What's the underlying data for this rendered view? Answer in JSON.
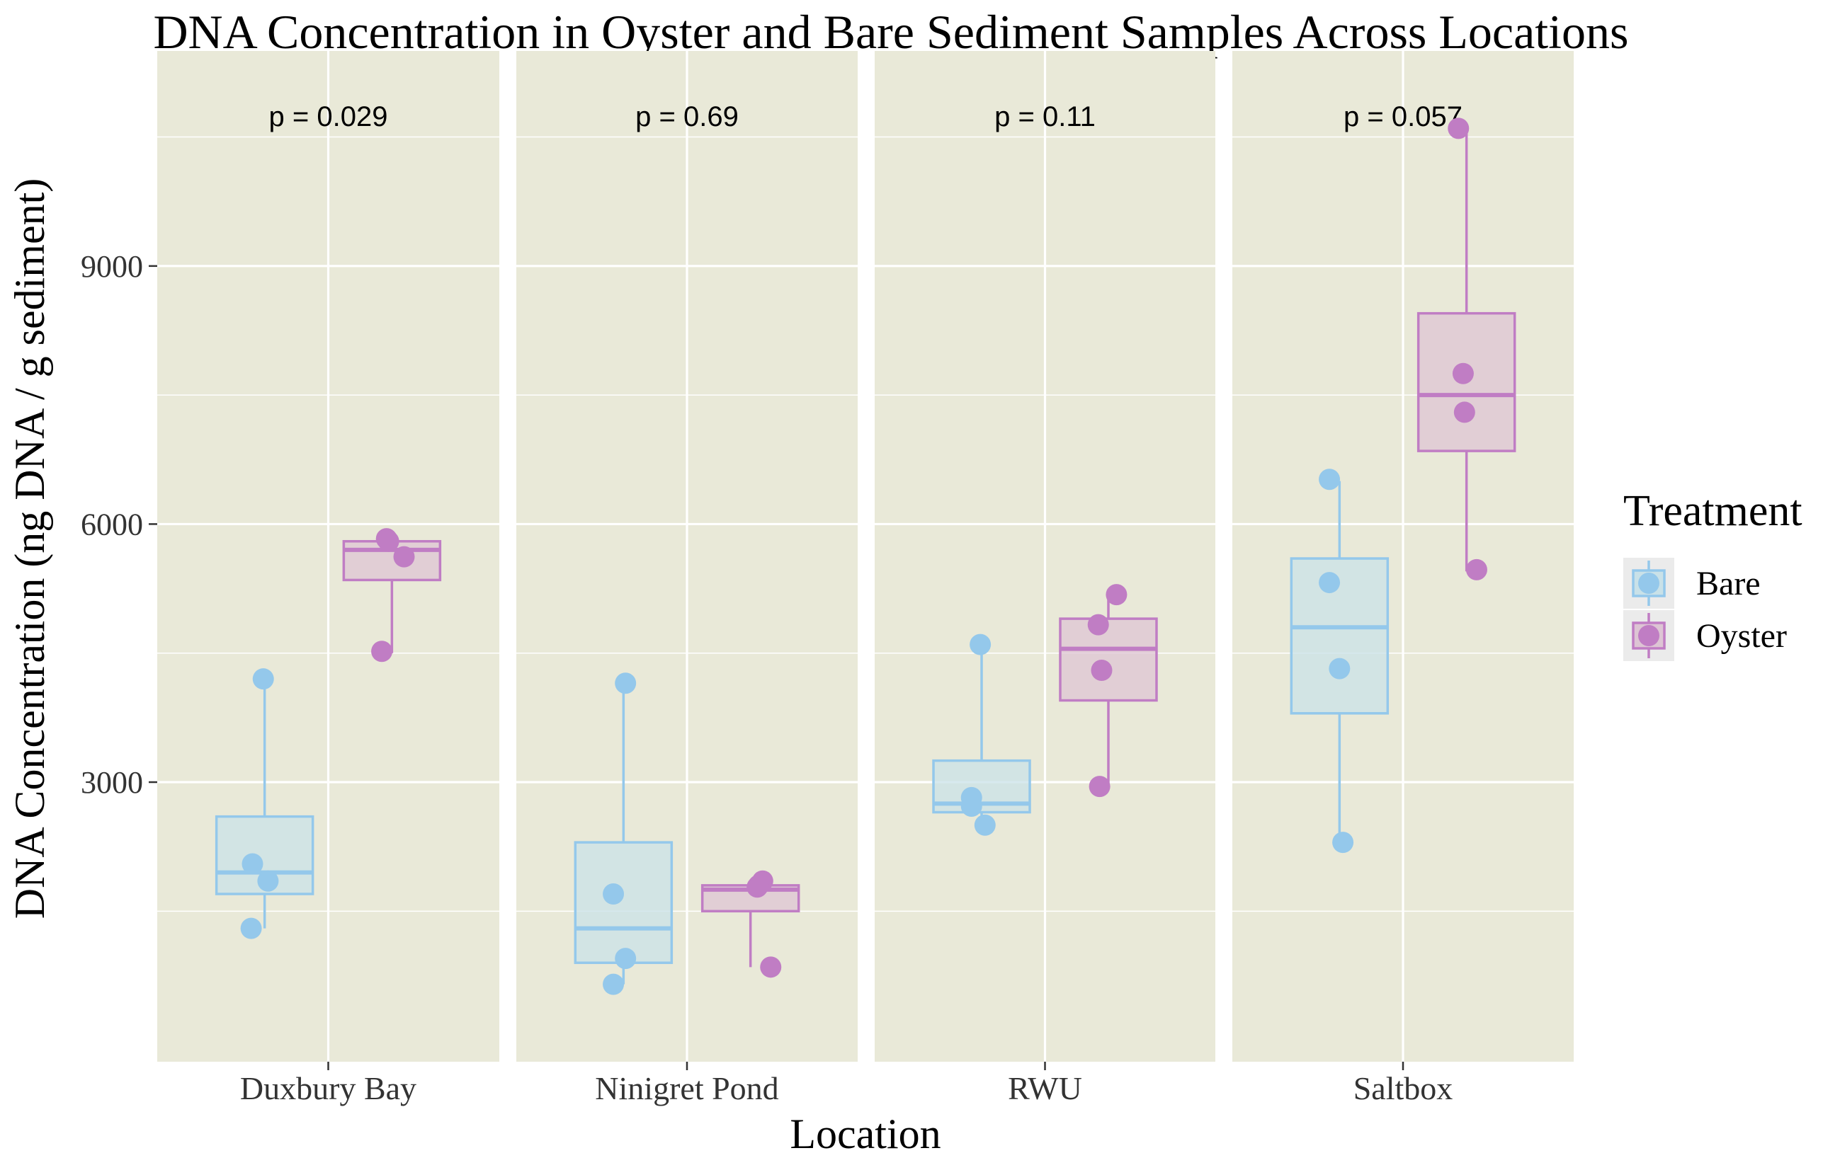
{
  "chart_data": {
    "type": "boxplot",
    "title": "DNA Concentration in Oyster and Bare Sediment Samples Across Locations",
    "xlabel": "Location",
    "ylabel": "DNA Concentration (ng DNA / g sediment)",
    "ylim": [
      -250,
      11500
    ],
    "yticks": [
      3000,
      6000,
      9000
    ],
    "grid": true,
    "panel_background": "#e9e9d8",
    "legend": {
      "title": "Treatment",
      "position": "right",
      "entries": [
        {
          "name": "Bare",
          "color": "#94c8eb",
          "fill": "#c9e1e8"
        },
        {
          "name": "Oyster",
          "color": "#c07dc4",
          "fill": "#ddc4d4"
        }
      ]
    },
    "facets": [
      {
        "location": "Duxbury Bay",
        "pvalue": "p = 0.029",
        "groups": [
          {
            "treatment": "Bare",
            "min": 1300,
            "q1": 1700,
            "median": 1950,
            "q3": 2600,
            "max": 4200,
            "points": [
              {
                "j": -0.2,
                "y": 1300
              },
              {
                "j": -0.18,
                "y": 2050
              },
              {
                "j": 0.05,
                "y": 1850
              },
              {
                "j": -0.02,
                "y": 4200
              }
            ]
          },
          {
            "treatment": "Oyster",
            "min": 4500,
            "q1": 5350,
            "median": 5700,
            "q3": 5800,
            "max": 5850,
            "points": [
              {
                "j": -0.15,
                "y": 4520
              },
              {
                "j": -0.08,
                "y": 5830
              },
              {
                "j": -0.05,
                "y": 5800
              },
              {
                "j": 0.18,
                "y": 5620
              }
            ]
          }
        ]
      },
      {
        "location": "Ninigret Pond",
        "pvalue": "p = 0.69",
        "groups": [
          {
            "treatment": "Bare",
            "min": 650,
            "q1": 900,
            "median": 1300,
            "q3": 2300,
            "max": 4150,
            "points": [
              {
                "j": -0.15,
                "y": 1700
              },
              {
                "j": -0.15,
                "y": 650
              },
              {
                "j": 0.03,
                "y": 950
              },
              {
                "j": 0.03,
                "y": 4150
              }
            ]
          },
          {
            "treatment": "Oyster",
            "min": 850,
            "q1": 1500,
            "median": 1750,
            "q3": 1800,
            "max": 1850,
            "points": [
              {
                "j": 0.1,
                "y": 1780
              },
              {
                "j": 0.18,
                "y": 1850
              },
              {
                "j": 0.12,
                "y": 1800
              },
              {
                "j": 0.3,
                "y": 850
              }
            ]
          }
        ]
      },
      {
        "location": "RWU",
        "pvalue": "p = 0.11",
        "groups": [
          {
            "treatment": "Bare",
            "min": 2500,
            "q1": 2650,
            "median": 2750,
            "q3": 3250,
            "max": 4600,
            "points": [
              {
                "j": -0.15,
                "y": 2820
              },
              {
                "j": -0.15,
                "y": 2720
              },
              {
                "j": 0.05,
                "y": 2500
              },
              {
                "j": -0.02,
                "y": 4600
              }
            ]
          },
          {
            "treatment": "Oyster",
            "min": 2950,
            "q1": 3950,
            "median": 4550,
            "q3": 4900,
            "max": 5150,
            "points": [
              {
                "j": -0.15,
                "y": 4830
              },
              {
                "j": -0.1,
                "y": 4300
              },
              {
                "j": 0.12,
                "y": 5180
              },
              {
                "j": -0.13,
                "y": 2950
              }
            ]
          }
        ]
      },
      {
        "location": "Saltbox",
        "pvalue": "p = 0.057",
        "groups": [
          {
            "treatment": "Bare",
            "min": 2250,
            "q1": 3800,
            "median": 4800,
            "q3": 5600,
            "max": 6500,
            "points": [
              {
                "j": -0.15,
                "y": 6520
              },
              {
                "j": -0.15,
                "y": 5320
              },
              {
                "j": 0.0,
                "y": 4320
              },
              {
                "j": 0.05,
                "y": 2300
              }
            ]
          },
          {
            "treatment": "Oyster",
            "min": 5450,
            "q1": 6850,
            "median": 7500,
            "q3": 8450,
            "max": 10600,
            "points": [
              {
                "j": -0.12,
                "y": 10600
              },
              {
                "j": -0.05,
                "y": 7750
              },
              {
                "j": -0.03,
                "y": 7300
              },
              {
                "j": 0.15,
                "y": 5470
              }
            ]
          }
        ]
      }
    ]
  }
}
